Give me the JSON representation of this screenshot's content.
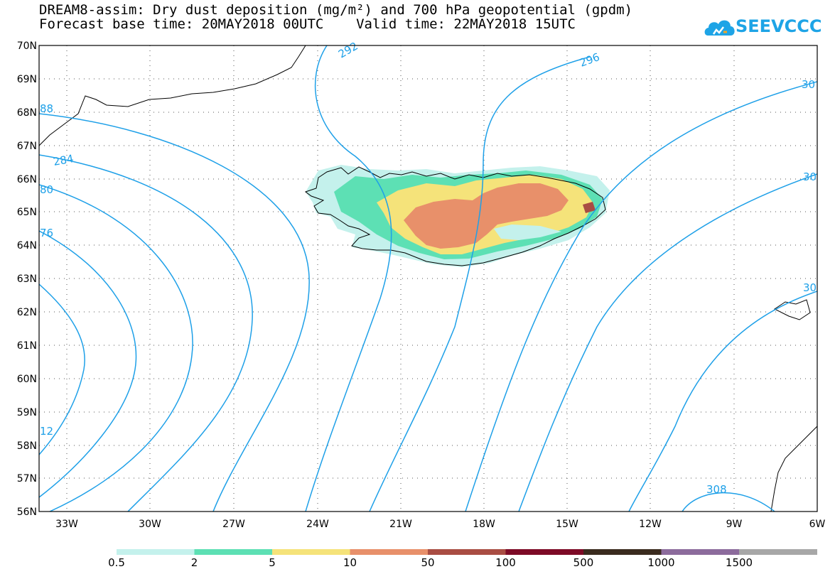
{
  "title": {
    "line1": "DREAM8-assim: Dry dust deposition (mg/m²) and 700 hPa geopotential (gpdm)",
    "line2": "Forecast base time: 20MAY2018 00UTC    Valid time: 22MAY2018 15UTC"
  },
  "logo": {
    "text": "SEEVCCC",
    "icon": "cloud-icon",
    "color": "#1ea4e6"
  },
  "map": {
    "lon_range": [
      -34,
      -6
    ],
    "lat_range": [
      56,
      70
    ],
    "lat_ticks": [
      "70N",
      "69N",
      "68N",
      "67N",
      "66N",
      "65N",
      "64N",
      "63N",
      "62N",
      "61N",
      "60N",
      "59N",
      "58N",
      "57N",
      "56N"
    ],
    "lon_ticks": [
      "33W",
      "30W",
      "27W",
      "24W",
      "21W",
      "18W",
      "15W",
      "12W",
      "9W",
      "6W"
    ],
    "contour_color": "#1ea0e8",
    "contour_labels": [
      "292",
      "296",
      "30",
      "88",
      "284",
      "80",
      "76",
      "30",
      "30",
      "12",
      "308"
    ]
  },
  "legend": {
    "colors": [
      "#c4f1ec",
      "#5de0b4",
      "#f5e37a",
      "#e8906a",
      "#a94d43",
      "#7d0a26",
      "#3a2b1e",
      "#8c6b9c",
      "#a7a7a7"
    ],
    "labels": [
      "0.5",
      "2",
      "5",
      "10",
      "50",
      "100",
      "500",
      "1000",
      "1500"
    ]
  }
}
